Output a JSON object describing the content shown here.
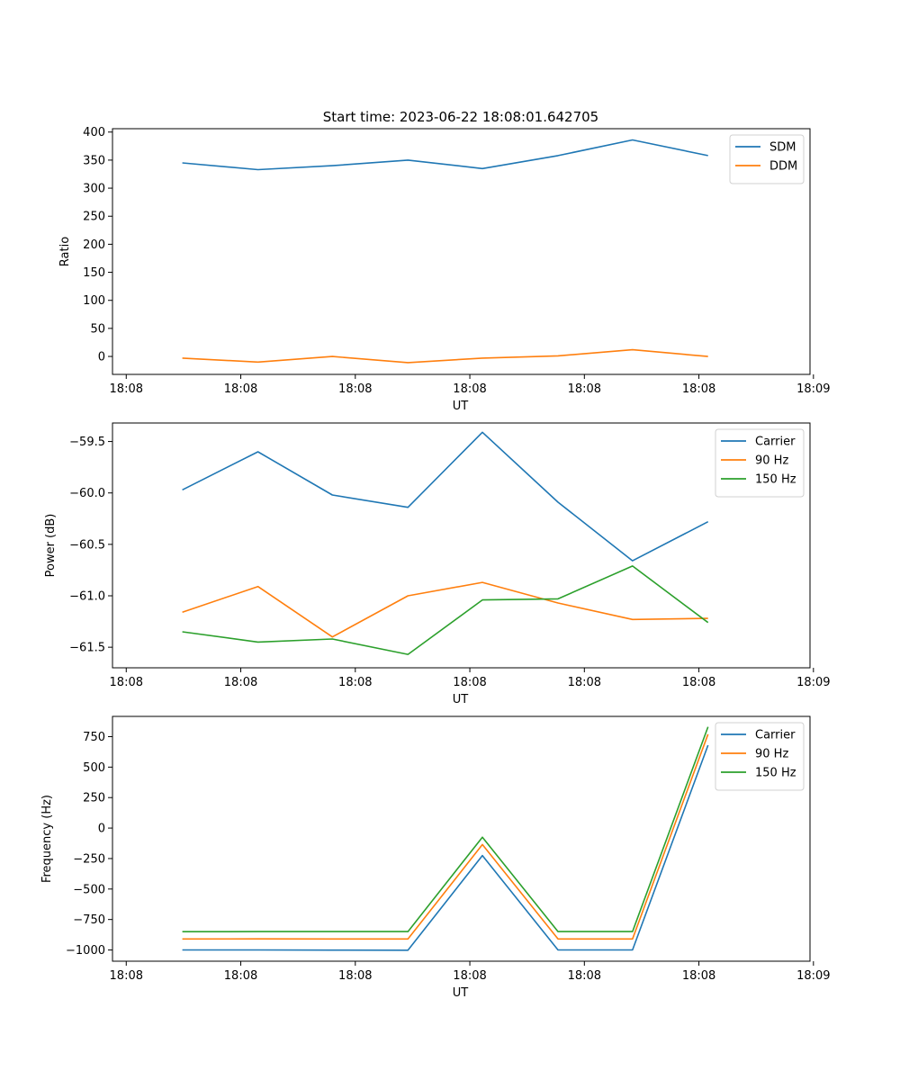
{
  "figure": {
    "title": "Start time: 2023-06-22 18:08:01.642705"
  },
  "chart_data": [
    {
      "type": "line",
      "title": "Start time: 2023-06-22 18:08:01.642705",
      "xlabel": "UT",
      "ylabel": "Ratio",
      "x_tick_labels": [
        "18:08",
        "18:08",
        "18:08",
        "18:08",
        "18:08",
        "18:08",
        "18:09"
      ],
      "x_ticks": [
        0,
        1,
        2,
        3,
        4,
        5,
        6
      ],
      "xlim": [
        -0.12,
        5.97
      ],
      "x": [
        0.49,
        1.15,
        1.8,
        2.46,
        3.11,
        3.77,
        4.42,
        5.08
      ],
      "y_ticks": [
        0,
        50,
        100,
        150,
        200,
        250,
        300,
        350,
        400
      ],
      "ylim": [
        -32,
        406
      ],
      "legend_position": "top-right",
      "series": [
        {
          "name": "SDM",
          "color": "#1f77b4",
          "values": [
            345,
            333,
            340,
            350,
            335,
            358,
            386,
            358
          ]
        },
        {
          "name": "DDM",
          "color": "#ff7f0e",
          "values": [
            -3,
            -10,
            0,
            -11,
            -3,
            1,
            12,
            0
          ]
        }
      ]
    },
    {
      "type": "line",
      "xlabel": "UT",
      "ylabel": "Power (dB)",
      "x_tick_labels": [
        "18:08",
        "18:08",
        "18:08",
        "18:08",
        "18:08",
        "18:08",
        "18:09"
      ],
      "x_ticks": [
        0,
        1,
        2,
        3,
        4,
        5,
        6
      ],
      "xlim": [
        -0.12,
        5.97
      ],
      "x": [
        0.49,
        1.15,
        1.8,
        2.46,
        3.11,
        3.77,
        4.42,
        5.08
      ],
      "y_ticks": [
        -61.5,
        -61.0,
        -60.5,
        -60.0,
        -59.5
      ],
      "y_tick_labels": [
        "−61.5",
        "−61.0",
        "−60.5",
        "−60.0",
        "−59.5"
      ],
      "ylim": [
        -61.7,
        -59.32
      ],
      "legend_position": "top-right",
      "series": [
        {
          "name": "Carrier",
          "color": "#1f77b4",
          "values": [
            -59.97,
            -59.6,
            -60.02,
            -60.14,
            -59.41,
            -60.09,
            -60.66,
            -60.28
          ]
        },
        {
          "name": "90 Hz",
          "color": "#ff7f0e",
          "values": [
            -61.16,
            -60.91,
            -61.4,
            -61.0,
            -60.87,
            -61.07,
            -61.23,
            -61.22
          ]
        },
        {
          "name": "150 Hz",
          "color": "#2ca02c",
          "values": [
            -61.35,
            -61.45,
            -61.42,
            -61.57,
            -61.04,
            -61.03,
            -60.71,
            -61.26
          ]
        }
      ]
    },
    {
      "type": "line",
      "xlabel": "UT",
      "ylabel": "Frequency (Hz)",
      "x_tick_labels": [
        "18:08",
        "18:08",
        "18:08",
        "18:08",
        "18:08",
        "18:08",
        "18:09"
      ],
      "x_ticks": [
        0,
        1,
        2,
        3,
        4,
        5,
        6
      ],
      "xlim": [
        -0.12,
        5.97
      ],
      "x": [
        0.49,
        1.15,
        1.8,
        2.46,
        3.11,
        3.77,
        4.42,
        5.08
      ],
      "y_ticks": [
        -1000,
        -750,
        -500,
        -250,
        0,
        250,
        500,
        750
      ],
      "y_tick_labels": [
        "−1000",
        "−750",
        "−500",
        "−250",
        "0",
        "250",
        "500",
        "750"
      ],
      "ylim": [
        -1092,
        916
      ],
      "legend_position": "top-right",
      "series": [
        {
          "name": "Carrier",
          "color": "#1f77b4",
          "values": [
            -1000,
            -1000,
            -1001,
            -1002,
            -225,
            -1000,
            -1000,
            680
          ]
        },
        {
          "name": "90 Hz",
          "color": "#ff7f0e",
          "values": [
            -910,
            -909,
            -910,
            -910,
            -135,
            -910,
            -910,
            770
          ]
        },
        {
          "name": "150 Hz",
          "color": "#2ca02c",
          "values": [
            -850,
            -849,
            -849,
            -849,
            -75,
            -849,
            -849,
            830
          ]
        }
      ]
    }
  ]
}
